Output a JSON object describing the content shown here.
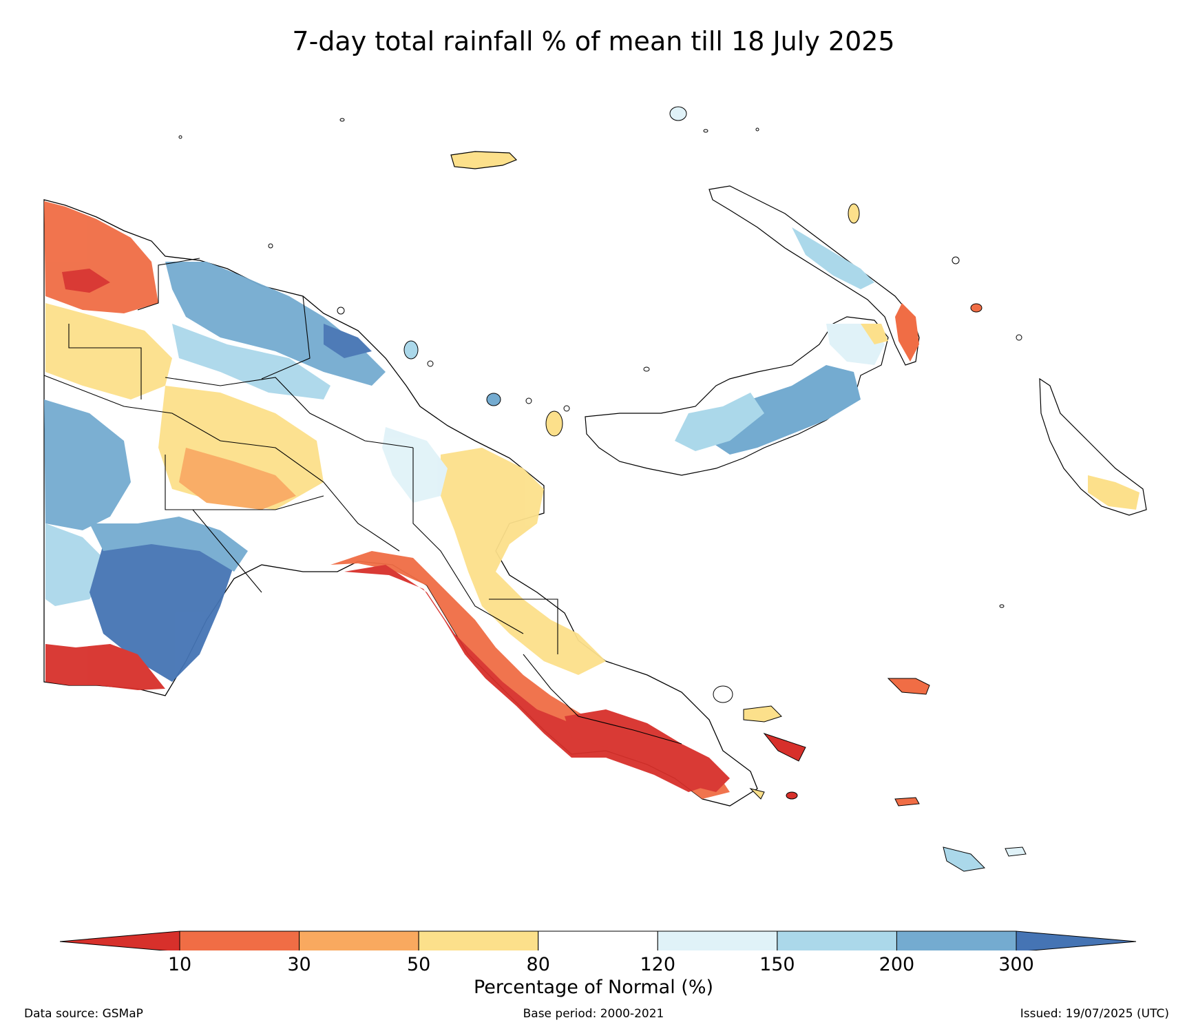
{
  "title": "7-day total rainfall % of mean till 18 July 2025",
  "colorbar": {
    "title": "Percentage of Normal (%)",
    "ticks": [
      "10",
      "30",
      "50",
      "80",
      "120",
      "150",
      "200",
      "300"
    ],
    "colors": [
      "#d7302b",
      "#f06d45",
      "#f9a95f",
      "#fce08b",
      "#ffffff",
      "#e0f2f8",
      "#abd8ea",
      "#74abd0",
      "#4574b4"
    ]
  },
  "footer": {
    "source": "Data source: GSMaP",
    "base_period": "Base period: 2000-2021",
    "issued": "Issued: 19/07/2025 (UTC)"
  }
}
